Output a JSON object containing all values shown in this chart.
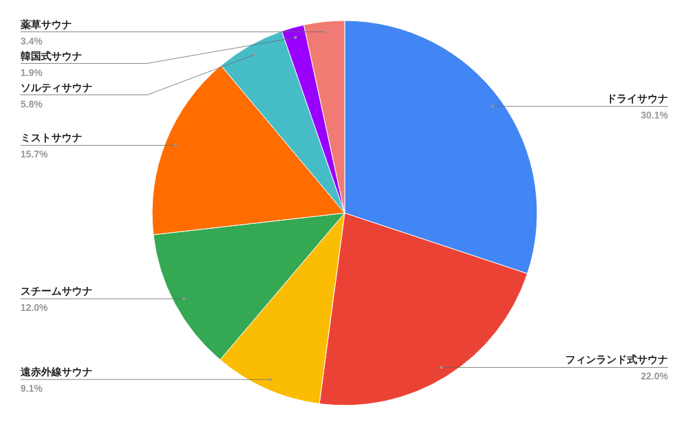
{
  "chart_data": {
    "type": "pie",
    "categories": [
      "ドライサウナ",
      "フィンランド式サウナ",
      "遠赤外線サウナ",
      "スチームサウナ",
      "ミストサウナ",
      "ソルティサウナ",
      "韓国式サウナ",
      "薬草サウナ"
    ],
    "values": [
      30.1,
      22.0,
      9.1,
      12.0,
      15.7,
      5.8,
      1.9,
      3.4
    ],
    "value_labels": [
      "30.1%",
      "22.0%",
      "9.1%",
      "12.0%",
      "15.7%",
      "5.8%",
      "1.9%",
      "3.4%"
    ],
    "colors": [
      "#4285f4",
      "#ea4335",
      "#fbbc04",
      "#34a853",
      "#ff6d01",
      "#46bdc6",
      "#9900ff",
      "#f07b72"
    ]
  }
}
